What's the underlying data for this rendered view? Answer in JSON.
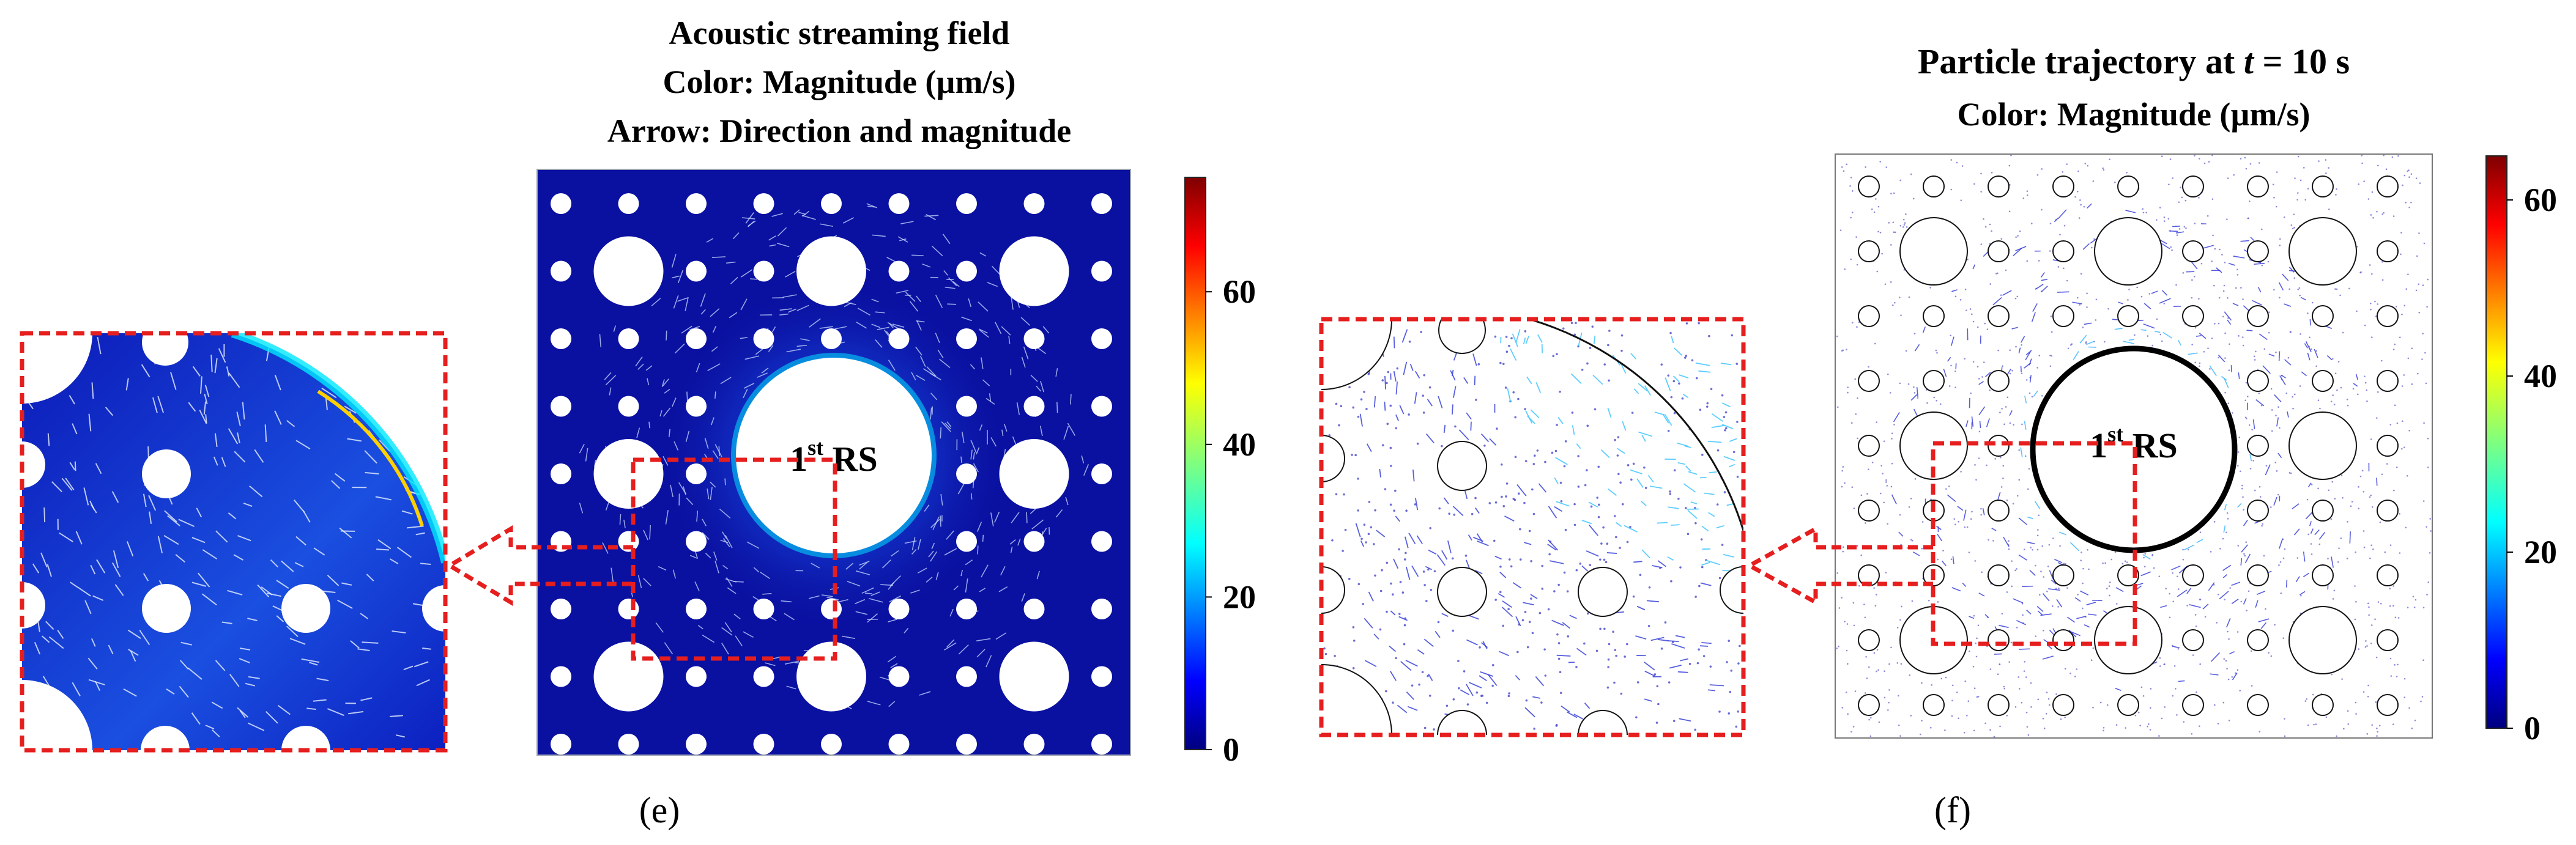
{
  "panel_e": {
    "title_line1": "Acoustic streaming field",
    "title_line2": "Color: Magnitude (µm/s)",
    "title_line3": "Arrow: Direction and magnitude",
    "rs_label_main": "1",
    "rs_label_sup": "st",
    "rs_label_rest": " RS",
    "colorbar_ticks": [
      "60",
      "40",
      "20",
      "0"
    ],
    "panel_label": "(e)"
  },
  "panel_f": {
    "title_prefix": "Particle trajectory at ",
    "title_var": "t",
    "title_suffix": " = 10 s",
    "title_line2": "Color: Magnitude (µm/s)",
    "rs_label_main": "1",
    "rs_label_sup": "st",
    "rs_label_rest": " RS",
    "colorbar_ticks": [
      "60",
      "40",
      "20",
      "0"
    ],
    "panel_label": "(f)"
  },
  "colors": {
    "field_background": "#0a10a0",
    "zoom_box": "#e61e1e",
    "colorbar_top": "#7f0000",
    "colorbar_bottom": "#00007f"
  }
}
